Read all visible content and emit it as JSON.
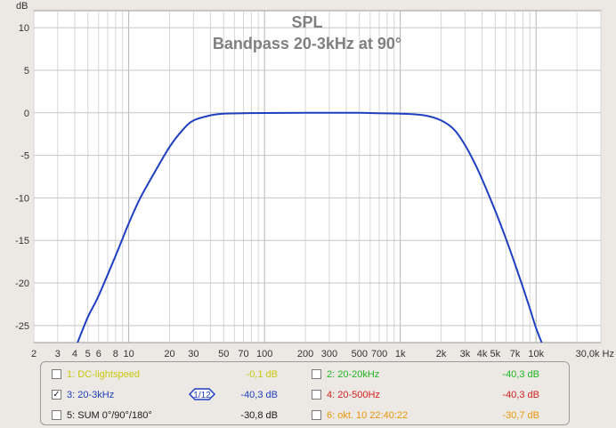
{
  "chart_data": {
    "type": "line",
    "title": "SPL",
    "subtitle": "Bandpass 20-3kHz at 90°",
    "ylabel": "dB",
    "xlabel": "",
    "x_unit_label": "Hz",
    "x_scale": "log",
    "xlim": [
      2,
      30000
    ],
    "ylim": [
      -27,
      12
    ],
    "grid": true,
    "y_ticks": [
      10,
      5,
      0,
      -5,
      -10,
      -15,
      -20,
      -25
    ],
    "y_tick_labels": [
      "10",
      "5",
      "0",
      "-5",
      "-10",
      "-15",
      "-20",
      "-25"
    ],
    "x_ticks": [
      {
        "value": 2,
        "label": "2"
      },
      {
        "value": 3,
        "label": "3"
      },
      {
        "value": 4,
        "label": "4"
      },
      {
        "value": 5,
        "label": "5"
      },
      {
        "value": 6,
        "label": "6"
      },
      {
        "value": 8,
        "label": "8"
      },
      {
        "value": 10,
        "label": "10"
      },
      {
        "value": 20,
        "label": "20"
      },
      {
        "value": 30,
        "label": "30"
      },
      {
        "value": 50,
        "label": "50"
      },
      {
        "value": 70,
        "label": "70"
      },
      {
        "value": 100,
        "label": "100"
      },
      {
        "value": 200,
        "label": "200"
      },
      {
        "value": 300,
        "label": "300"
      },
      {
        "value": 500,
        "label": "500"
      },
      {
        "value": 700,
        "label": "700"
      },
      {
        "value": 1000,
        "label": "1k"
      },
      {
        "value": 2000,
        "label": "2k"
      },
      {
        "value": 3000,
        "label": "3k"
      },
      {
        "value": 4000,
        "label": "4k"
      },
      {
        "value": 5000,
        "label": "5k"
      },
      {
        "value": 7000,
        "label": "7k"
      },
      {
        "value": 10000,
        "label": "10k"
      },
      {
        "value": 30000,
        "label": "30,0k Hz"
      }
    ],
    "series": [
      {
        "name": "3: 20-3kHz",
        "color": "#1f3fbf",
        "x": [
          4.2,
          5,
          6,
          8,
          10,
          12,
          15,
          20,
          25,
          30,
          40,
          50,
          70,
          100,
          200,
          300,
          500,
          700,
          1000,
          1500,
          2000,
          2500,
          3000,
          3500,
          4000,
          5000,
          6000,
          7000,
          8000,
          9000,
          10000,
          11000
        ],
        "y": [
          -27,
          -24,
          -21.5,
          -16.8,
          -13,
          -10.2,
          -7.4,
          -4,
          -2,
          -0.9,
          -0.3,
          -0.1,
          -0.05,
          -0.02,
          0,
          0,
          0,
          -0.05,
          -0.1,
          -0.3,
          -0.9,
          -2,
          -3.8,
          -5.8,
          -7.8,
          -11.5,
          -14.8,
          -17.8,
          -20.5,
          -23,
          -25.3,
          -27
        ]
      }
    ]
  },
  "legend": {
    "items": [
      {
        "id": 1,
        "label": "1: DC-lightspeed",
        "value": "-0,1 dB",
        "color": "#c8c810",
        "checked": false
      },
      {
        "id": 2,
        "label": "2: 20-20kHz",
        "value": "-40,3 dB",
        "color": "#22b422",
        "checked": false
      },
      {
        "id": 3,
        "label": "3: 20-3kHz",
        "value": "-40,3 dB",
        "color": "#1f3fbf",
        "checked": true
      },
      {
        "id": 4,
        "label": "4: 20-500Hz",
        "value": "-40,3 dB",
        "color": "#d42020",
        "checked": false
      },
      {
        "id": 5,
        "label": "5: SUM 0°/90°/180°",
        "value": "-30,8 dB",
        "color": "#1a1a1a",
        "checked": false
      },
      {
        "id": 6,
        "label": "6: okt. 10 22:40:22",
        "value": "-30,7 dB",
        "color": "#e8960a",
        "checked": false
      }
    ],
    "smoothing_label": "1/12"
  }
}
